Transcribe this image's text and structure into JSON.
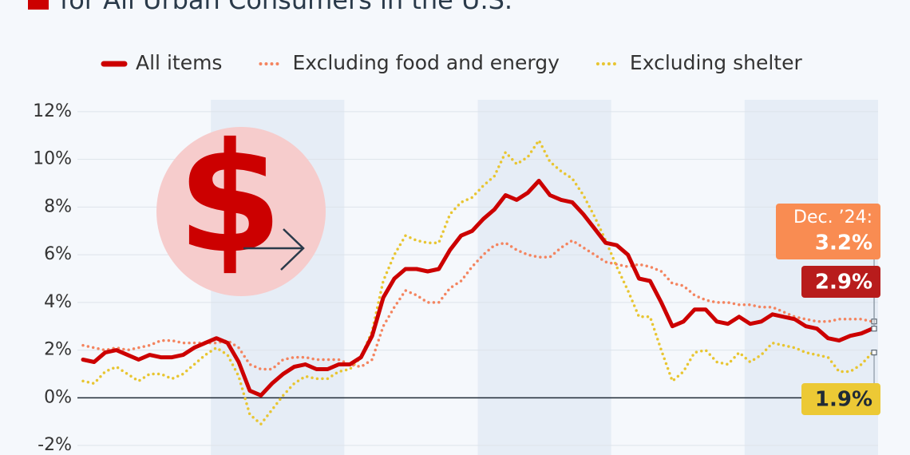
{
  "chart_data": {
    "type": "line",
    "title": "for All Urban Consumers in the U.S.",
    "categories": [
      null,
      null,
      null,
      null,
      null,
      null,
      null,
      null,
      null,
      null,
      null,
      null,
      null,
      null,
      null,
      null,
      null,
      null,
      null,
      null,
      null,
      null,
      null,
      null,
      null,
      null,
      null,
      null,
      null,
      null,
      null,
      null,
      null,
      null,
      null,
      null,
      null,
      null,
      null,
      null,
      null,
      null,
      null,
      null,
      null,
      null,
      null,
      null,
      null,
      null,
      null,
      null,
      null,
      null,
      null,
      null,
      null,
      null,
      null,
      null,
      null,
      null,
      null,
      null,
      null,
      null,
      null,
      null,
      null,
      null,
      null,
      null
    ],
    "series": [
      {
        "name": "All items",
        "color": "#cc0000",
        "style": "solid",
        "values": [
          1.6,
          1.5,
          1.9,
          2.0,
          1.8,
          1.6,
          1.8,
          1.7,
          1.7,
          1.8,
          2.1,
          2.3,
          2.5,
          2.3,
          1.5,
          0.3,
          0.1,
          0.6,
          1.0,
          1.3,
          1.4,
          1.2,
          1.2,
          1.4,
          1.4,
          1.7,
          2.6,
          4.2,
          5.0,
          5.4,
          5.4,
          5.3,
          5.4,
          6.2,
          6.8,
          7.0,
          7.5,
          7.9,
          8.5,
          8.3,
          8.6,
          9.1,
          8.5,
          8.3,
          8.2,
          7.7,
          7.1,
          6.5,
          6.4,
          6.0,
          5.0,
          4.9,
          4.0,
          3.0,
          3.2,
          3.7,
          3.7,
          3.2,
          3.1,
          3.4,
          3.1,
          3.2,
          3.5,
          3.4,
          3.3,
          3.0,
          2.9,
          2.5,
          2.4,
          2.6,
          2.7,
          2.9
        ],
        "value_labels": [
          null,
          null,
          null,
          null,
          null,
          null,
          null,
          null,
          null,
          null,
          null,
          null,
          null,
          null,
          null,
          null,
          null,
          null,
          null,
          null,
          null,
          null,
          null,
          null,
          null,
          null,
          null,
          null,
          null,
          null,
          null,
          null,
          null,
          null,
          null,
          null,
          null,
          null,
          null,
          null,
          null,
          null,
          null,
          null,
          null,
          null,
          null,
          null,
          null,
          null,
          null,
          null,
          null,
          null,
          null,
          null,
          null,
          null,
          null,
          null,
          null,
          null,
          null,
          null,
          null,
          null,
          null,
          null,
          null,
          null,
          null,
          "2.9%"
        ]
      },
      {
        "name": "Excluding food and energy",
        "color": "#f4845f",
        "style": "dotted",
        "values": [
          2.2,
          2.1,
          2.0,
          2.1,
          2.0,
          2.1,
          2.2,
          2.4,
          2.4,
          2.3,
          2.3,
          2.3,
          2.3,
          2.4,
          2.1,
          1.4,
          1.2,
          1.2,
          1.6,
          1.7,
          1.7,
          1.6,
          1.6,
          1.6,
          1.4,
          1.3,
          1.6,
          3.0,
          3.8,
          4.5,
          4.3,
          4.0,
          4.0,
          4.6,
          4.9,
          5.5,
          6.0,
          6.4,
          6.5,
          6.2,
          6.0,
          5.9,
          5.9,
          6.3,
          6.6,
          6.3,
          6.0,
          5.7,
          5.6,
          5.5,
          5.6,
          5.5,
          5.3,
          4.8,
          4.7,
          4.3,
          4.1,
          4.0,
          4.0,
          3.9,
          3.9,
          3.8,
          3.8,
          3.6,
          3.4,
          3.3,
          3.2,
          3.2,
          3.3,
          3.3,
          3.3,
          3.2
        ],
        "value_labels": [
          null,
          null,
          null,
          null,
          null,
          null,
          null,
          null,
          null,
          null,
          null,
          null,
          null,
          null,
          null,
          null,
          null,
          null,
          null,
          null,
          null,
          null,
          null,
          null,
          null,
          null,
          null,
          null,
          null,
          null,
          null,
          null,
          null,
          null,
          null,
          null,
          null,
          null,
          null,
          null,
          null,
          null,
          null,
          null,
          null,
          null,
          null,
          null,
          null,
          null,
          null,
          null,
          null,
          null,
          null,
          null,
          null,
          null,
          null,
          null,
          null,
          null,
          null,
          null,
          null,
          null,
          null,
          null,
          null,
          null,
          null,
          "3.2%"
        ]
      },
      {
        "name": "Excluding shelter",
        "color": "#e8c531",
        "style": "dotted",
        "values": [
          0.7,
          0.6,
          1.1,
          1.3,
          1.0,
          0.7,
          1.0,
          1.0,
          0.8,
          1.0,
          1.4,
          1.8,
          2.1,
          1.8,
          0.9,
          -0.7,
          -1.1,
          -0.5,
          0.1,
          0.6,
          0.9,
          0.8,
          0.8,
          1.1,
          1.2,
          1.7,
          2.8,
          4.9,
          6.0,
          6.8,
          6.6,
          6.5,
          6.5,
          7.7,
          8.2,
          8.4,
          8.9,
          9.3,
          10.3,
          9.8,
          10.1,
          10.8,
          9.9,
          9.5,
          9.2,
          8.5,
          7.6,
          6.6,
          5.5,
          4.5,
          3.4,
          3.4,
          2.0,
          0.7,
          1.1,
          1.9,
          2.0,
          1.5,
          1.4,
          1.9,
          1.5,
          1.8,
          2.3,
          2.2,
          2.1,
          1.9,
          1.8,
          1.7,
          1.1,
          1.1,
          1.4,
          1.9
        ],
        "value_labels": [
          null,
          null,
          null,
          null,
          null,
          null,
          null,
          null,
          null,
          null,
          null,
          null,
          null,
          null,
          null,
          null,
          null,
          null,
          null,
          null,
          null,
          null,
          null,
          null,
          null,
          null,
          null,
          null,
          null,
          null,
          null,
          null,
          null,
          null,
          null,
          null,
          null,
          null,
          null,
          null,
          null,
          null,
          null,
          null,
          null,
          null,
          null,
          null,
          null,
          null,
          null,
          null,
          null,
          null,
          null,
          null,
          null,
          null,
          null,
          null,
          null,
          null,
          null,
          null,
          null,
          null,
          null,
          null,
          null,
          null,
          null,
          "1.9%"
        ]
      }
    ],
    "annotation": "Dec. ’24:",
    "ylim": [
      -2.4,
      12.5
    ],
    "yticks": [
      {
        "value": -2,
        "label": "-2%"
      },
      {
        "value": 0,
        "label": "0%"
      },
      {
        "value": 2,
        "label": "2%"
      },
      {
        "value": 4,
        "label": "4%"
      },
      {
        "value": 6,
        "label": "6%"
      },
      {
        "value": 8,
        "label": "8%"
      },
      {
        "value": 10,
        "label": "10%"
      },
      {
        "value": 12,
        "label": "12%"
      }
    ],
    "grid": true
  }
}
